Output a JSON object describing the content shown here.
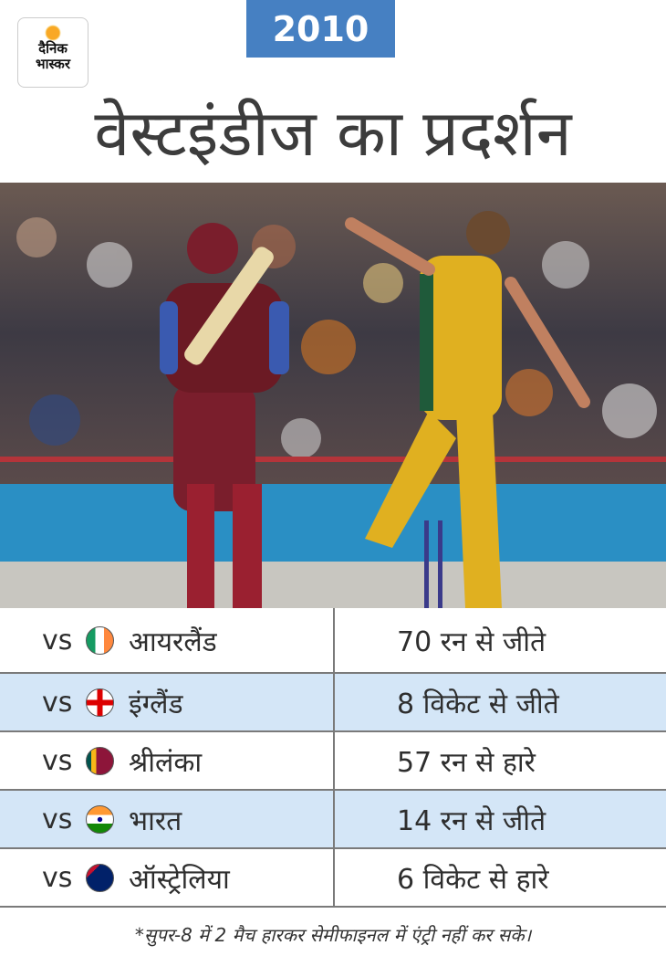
{
  "logo": {
    "line1": "दैनिक",
    "line2": "भास्कर"
  },
  "year": "2010",
  "title": "वेस्टइंडीज का प्रदर्शन",
  "colors": {
    "year_badge": "#4680c2",
    "row_alt": "#d4e6f7",
    "logo_sun": "#f9a825"
  },
  "matches": [
    {
      "vs": "vs",
      "flag": "ireland-flag-icon",
      "opponent": "आयरलैंड",
      "result": "70 रन से जीते"
    },
    {
      "vs": "vs",
      "flag": "england-flag-icon",
      "opponent": "इंग्लैंड",
      "result": "8 विकेट से जीते"
    },
    {
      "vs": "vs",
      "flag": "sri-lanka-flag-icon",
      "opponent": "श्रीलंका",
      "result": "57 रन से हारे"
    },
    {
      "vs": "vs",
      "flag": "india-flag-icon",
      "opponent": "भारत",
      "result": "14 रन से जीते"
    },
    {
      "vs": "vs",
      "flag": "australia-flag-icon",
      "opponent": "ऑस्ट्रेलिया",
      "result": "6 विकेट से हारे"
    }
  ],
  "footnote": "*सुपर-8 में 2 मैच हारकर सेमीफाइनल में एंट्री नहीं कर सके।"
}
